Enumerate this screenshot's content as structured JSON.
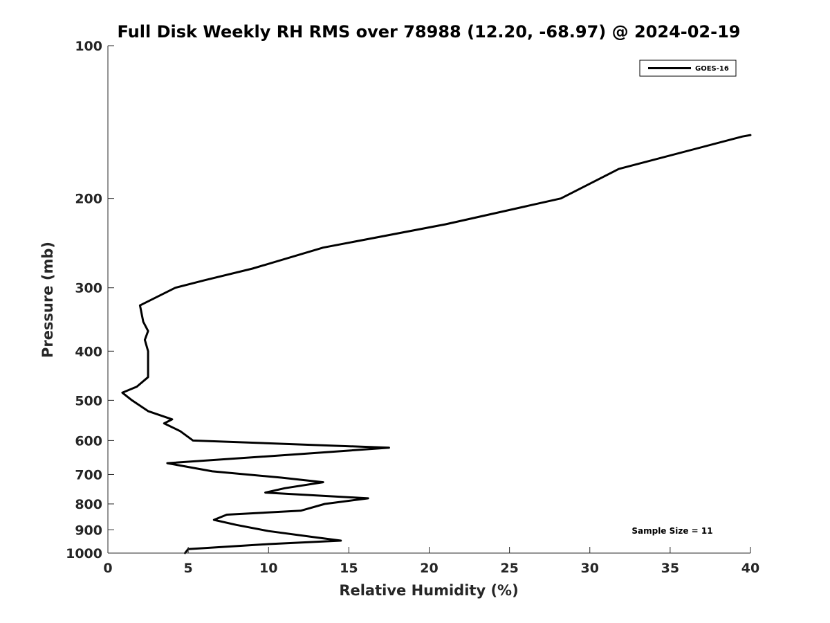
{
  "chart_data": {
    "type": "line",
    "title": "Full Disk Weekly RH RMS over 78988 (12.20, -68.97) @ 2024-02-19",
    "xlabel": "Relative Humidity (%)",
    "ylabel": "Pressure (mb)",
    "xlim": [
      0,
      40
    ],
    "ylim": [
      1000,
      100
    ],
    "y_scale": "log",
    "y_reversed": true,
    "x_ticks": [
      0,
      5,
      10,
      15,
      20,
      25,
      30,
      35,
      40
    ],
    "x_tick_labels": [
      "0",
      "5",
      "10",
      "15",
      "20",
      "25",
      "30",
      "35",
      "40"
    ],
    "y_ticks": [
      100,
      200,
      300,
      400,
      500,
      600,
      700,
      800,
      900,
      1000
    ],
    "y_tick_labels": [
      "100",
      "200",
      "300",
      "400",
      "500",
      "600",
      "700",
      "800",
      "900",
      "1000"
    ],
    "grid": false,
    "legend_position": "top-right",
    "annotation": "Sample Size = 11",
    "series": [
      {
        "name": "GOES-16",
        "color": "#000000",
        "points": [
          [
            40.0,
            150
          ],
          [
            39.5,
            151
          ],
          [
            31.8,
            175
          ],
          [
            28.2,
            200
          ],
          [
            21.0,
            225
          ],
          [
            13.4,
            250
          ],
          [
            9.0,
            275
          ],
          [
            6.0,
            290
          ],
          [
            4.2,
            300
          ],
          [
            2.0,
            325
          ],
          [
            2.2,
            350
          ],
          [
            2.5,
            365
          ],
          [
            2.3,
            380
          ],
          [
            2.5,
            400
          ],
          [
            2.5,
            450
          ],
          [
            1.8,
            470
          ],
          [
            0.9,
            483
          ],
          [
            1.5,
            500
          ],
          [
            2.5,
            525
          ],
          [
            4.0,
            545
          ],
          [
            3.5,
            555
          ],
          [
            4.5,
            575
          ],
          [
            5.3,
            600
          ],
          [
            17.5,
            620
          ],
          [
            12.0,
            638
          ],
          [
            3.7,
            665
          ],
          [
            6.5,
            690
          ],
          [
            10.8,
            710
          ],
          [
            13.4,
            725
          ],
          [
            11.0,
            745
          ],
          [
            9.8,
            760
          ],
          [
            16.2,
            780
          ],
          [
            13.5,
            800
          ],
          [
            12.0,
            825
          ],
          [
            7.4,
            840
          ],
          [
            6.6,
            860
          ],
          [
            8.0,
            880
          ],
          [
            10.0,
            905
          ],
          [
            12.8,
            930
          ],
          [
            14.5,
            945
          ],
          [
            10.0,
            960
          ],
          [
            5.0,
            982
          ],
          [
            4.8,
            1000
          ]
        ]
      }
    ]
  }
}
